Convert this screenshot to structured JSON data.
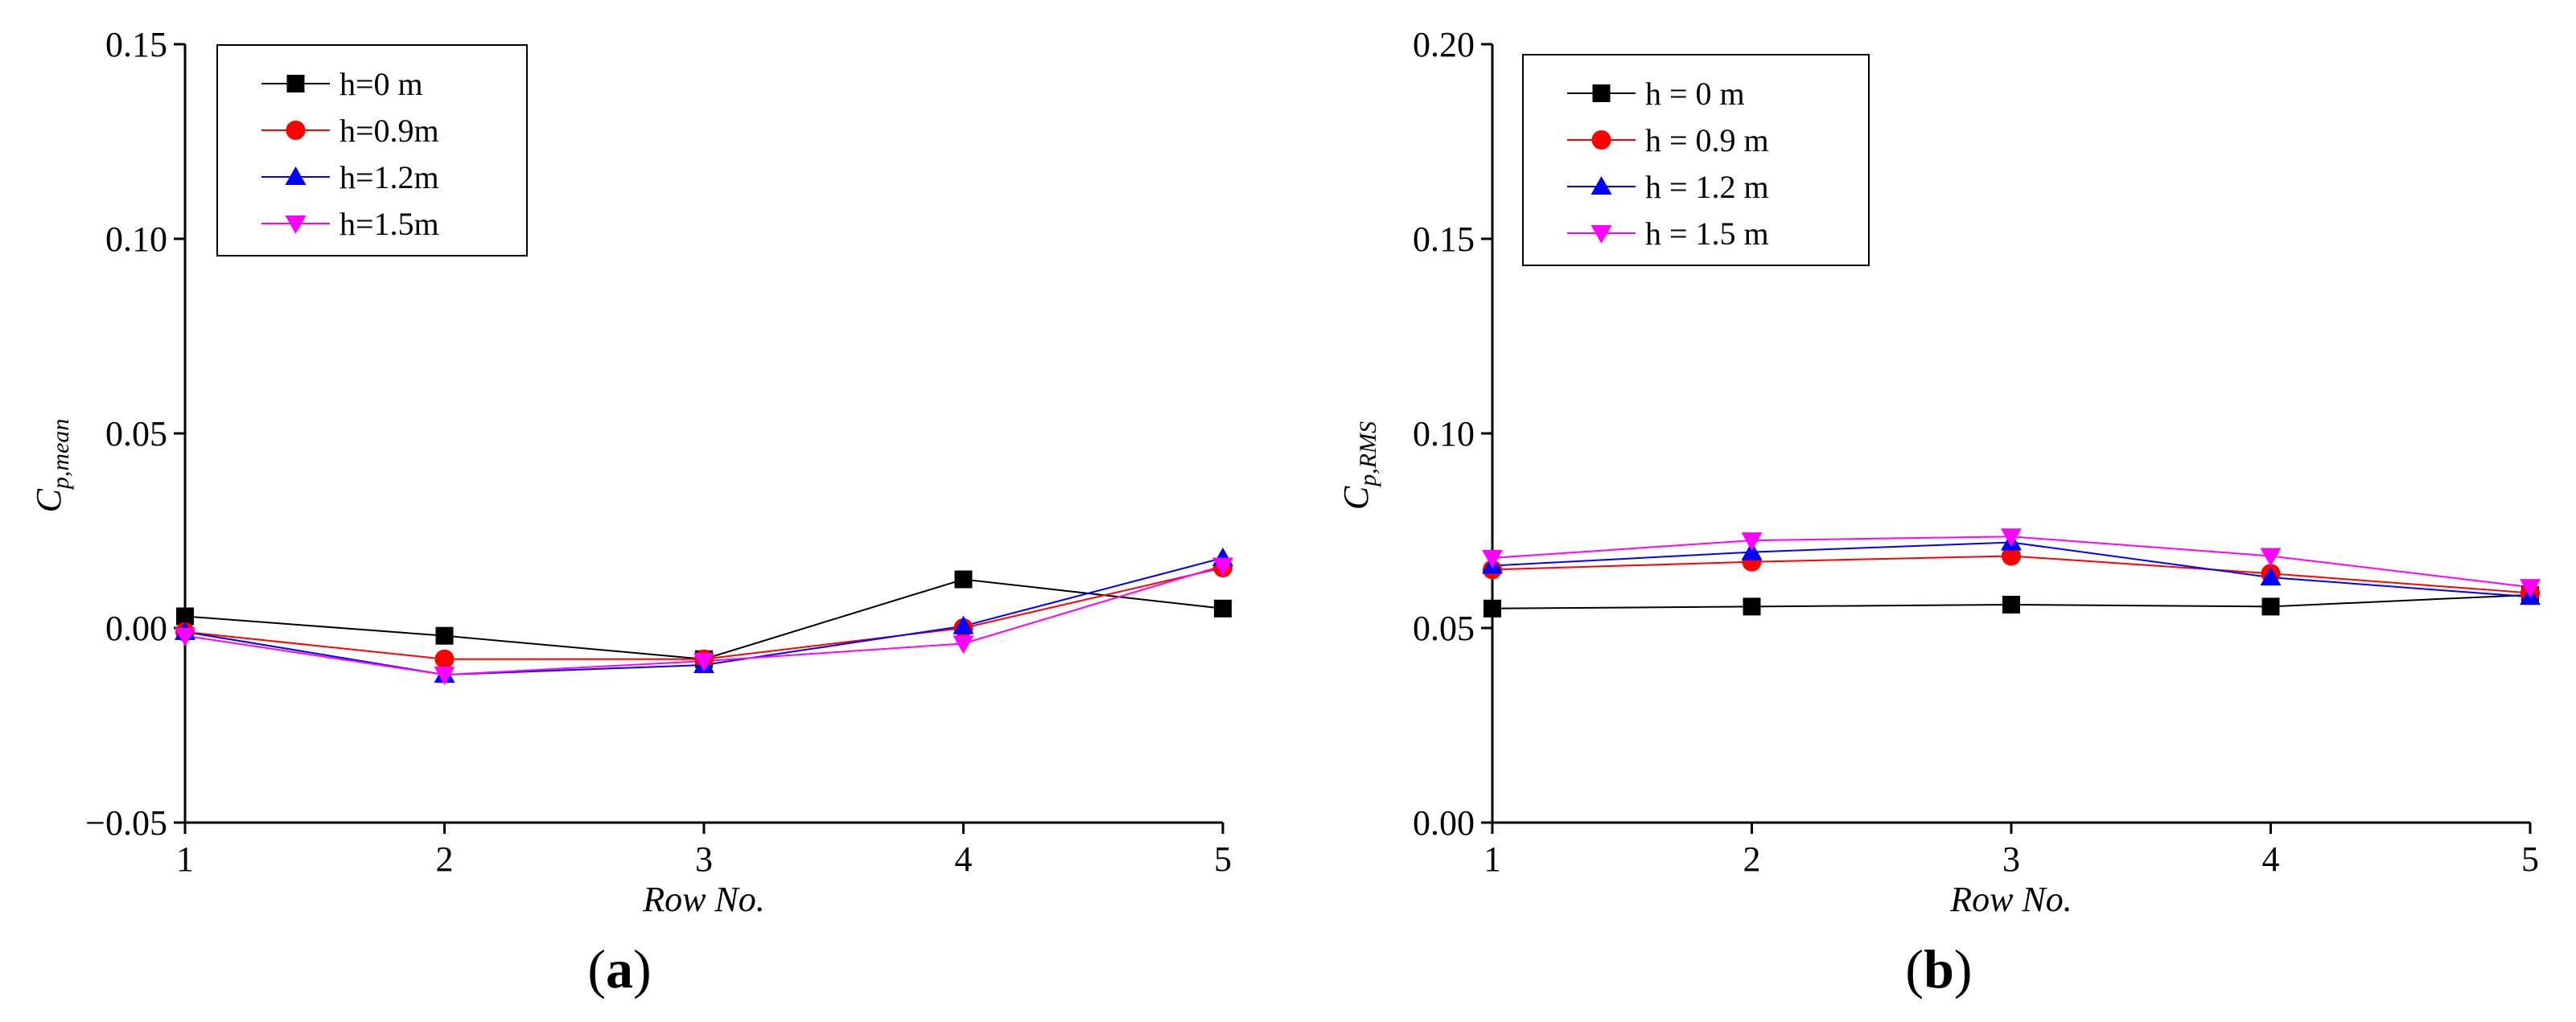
{
  "figure": {
    "charts": [
      {
        "id": "a",
        "panel_label": "a",
        "chart_data": {
          "type": "line",
          "xlabel": "Row No.",
          "ylabel_main": "C",
          "ylabel_sub": "p,mean",
          "xlim": [
            1,
            5
          ],
          "ylim": [
            -0.05,
            0.15
          ],
          "xticks": [
            1,
            2,
            3,
            4,
            5
          ],
          "xtick_labels": [
            "1",
            "2",
            "3",
            "4",
            "5"
          ],
          "yticks": [
            -0.05,
            0.0,
            0.05,
            0.1,
            0.15
          ],
          "ytick_labels": [
            "−0.05",
            "0.00",
            "0.05",
            "0.10",
            "0.15"
          ],
          "grid": false,
          "legend_position": "top-left",
          "x": [
            1,
            2,
            3,
            4,
            5
          ],
          "series": [
            {
              "name": "h=0    m",
              "color": "#000000",
              "marker": "square",
              "values": [
                0.003,
                -0.002,
                -0.008,
                0.0125,
                0.005
              ]
            },
            {
              "name": "h=0.9m",
              "color": "#ff0000",
              "marker": "circle",
              "values": [
                -0.001,
                -0.008,
                -0.008,
                0.0,
                0.0155
              ]
            },
            {
              "name": "h=1.2m",
              "color": "#0000ff",
              "marker": "triangle-up",
              "values": [
                -0.001,
                -0.012,
                -0.0095,
                0.0005,
                0.018
              ]
            },
            {
              "name": "h=1.5m",
              "color": "#ff00ff",
              "marker": "triangle-down",
              "values": [
                -0.002,
                -0.012,
                -0.0085,
                -0.004,
                0.016
              ]
            }
          ]
        }
      },
      {
        "id": "b",
        "panel_label": "b",
        "chart_data": {
          "type": "line",
          "xlabel": "Row No.",
          "ylabel_main": "C",
          "ylabel_sub": "p,RMS",
          "xlim": [
            1,
            5
          ],
          "ylim": [
            0.0,
            0.2
          ],
          "xticks": [
            1,
            2,
            3,
            4,
            5
          ],
          "xtick_labels": [
            "1",
            "2",
            "3",
            "4",
            "5"
          ],
          "yticks": [
            0.0,
            0.05,
            0.1,
            0.15,
            0.2
          ],
          "ytick_labels": [
            "0.00",
            "0.05",
            "0.10",
            "0.15",
            "0.20"
          ],
          "grid": false,
          "legend_position": "top-left",
          "x": [
            1,
            2,
            3,
            4,
            5
          ],
          "series": [
            {
              "name": "h = 0    m",
              "color": "#000000",
              "marker": "square",
              "values": [
                0.055,
                0.0555,
                0.056,
                0.0555,
                0.0585
              ]
            },
            {
              "name": "h = 0.9 m",
              "color": "#ff0000",
              "marker": "circle",
              "values": [
                0.065,
                0.067,
                0.0685,
                0.064,
                0.059
              ]
            },
            {
              "name": "h = 1.2 m",
              "color": "#0000ff",
              "marker": "triangle-up",
              "values": [
                0.066,
                0.0695,
                0.072,
                0.063,
                0.058
              ]
            },
            {
              "name": "h = 1.5 m",
              "color": "#ff00ff",
              "marker": "triangle-down",
              "values": [
                0.068,
                0.0725,
                0.0735,
                0.0685,
                0.0605
              ]
            }
          ]
        }
      }
    ]
  }
}
